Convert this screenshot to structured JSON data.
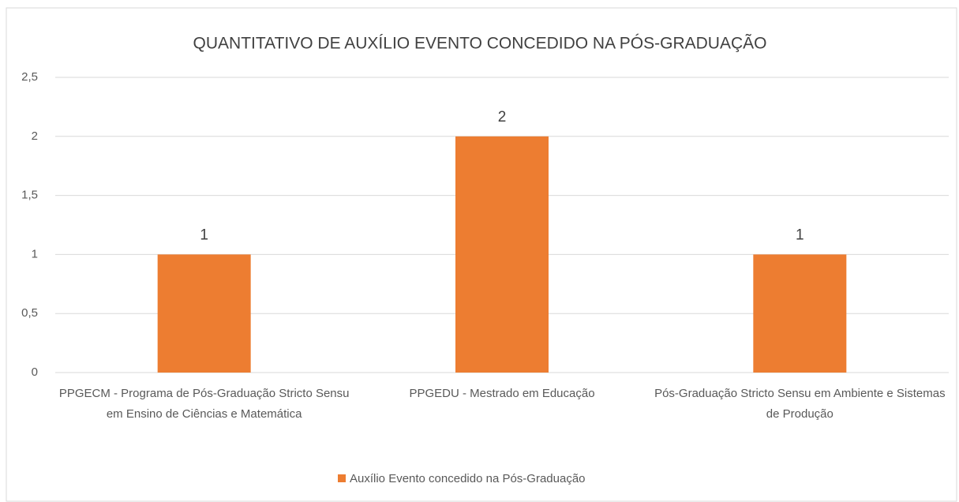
{
  "chart_data": {
    "type": "bar",
    "title": "QUANTITATIVO DE AUXÍLIO EVENTO CONCEDIDO NA PÓS-GRADUAÇÃO",
    "categories": [
      "PPGECM - Programa de Pós-Graduação Stricto Sensu em Ensino de Ciências e Matemática",
      "PPGEDU - Mestrado em Educação",
      "Pós-Graduação Stricto Sensu em Ambiente e Sistemas de Produção"
    ],
    "series": [
      {
        "name": "Auxílio Evento concedido na Pós-Graduação",
        "color": "#ed7d31",
        "values": [
          1,
          2,
          1
        ]
      }
    ],
    "ylim": [
      0,
      2.5
    ],
    "yticks": [
      0,
      {
        "value": 0.5,
        "label": "0,5"
      },
      1,
      {
        "value": 1.5,
        "label": "1,5"
      },
      2,
      {
        "value": 2.5,
        "label": "2,5"
      }
    ],
    "grid": true,
    "legend": "bottom"
  }
}
